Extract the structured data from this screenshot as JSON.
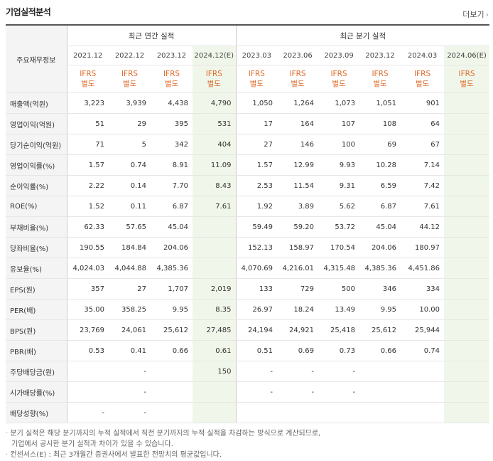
{
  "title": "기업실적분석",
  "more_label": "더보기",
  "more_arrow": "›",
  "header": {
    "row_label": "주요재무정보",
    "annual_group": "최근 연간 실적",
    "quarter_group": "최근 분기 실적",
    "annual_periods": [
      "2021.12",
      "2022.12",
      "2023.12",
      "2024.12(E)"
    ],
    "quarter_periods": [
      "2023.03",
      "2023.06",
      "2023.09",
      "2023.12",
      "2024.03",
      "2024.06(E)"
    ],
    "ifrs_line1": "IFRS",
    "ifrs_line2": "별도"
  },
  "rows": [
    {
      "label": "매출액(억원)",
      "values": [
        "3,223",
        "3,939",
        "4,438",
        "4,790",
        "1,050",
        "1,264",
        "1,073",
        "1,051",
        "901",
        ""
      ]
    },
    {
      "label": "영업이익(억원)",
      "values": [
        "51",
        "29",
        "395",
        "531",
        "17",
        "164",
        "107",
        "108",
        "64",
        ""
      ]
    },
    {
      "label": "당기순이익(억원)",
      "values": [
        "71",
        "5",
        "342",
        "404",
        "27",
        "146",
        "100",
        "69",
        "67",
        ""
      ]
    },
    {
      "label": "영업이익률(%)",
      "values": [
        "1.57",
        "0.74",
        "8.91",
        "11.09",
        "1.57",
        "12.99",
        "9.93",
        "10.28",
        "7.14",
        ""
      ]
    },
    {
      "label": "순이익률(%)",
      "values": [
        "2.22",
        "0.14",
        "7.70",
        "8.43",
        "2.53",
        "11.54",
        "9.31",
        "6.59",
        "7.42",
        ""
      ]
    },
    {
      "label": "ROE(%)",
      "values": [
        "1.52",
        "0.11",
        "6.87",
        "7.61",
        "1.92",
        "3.89",
        "5.62",
        "6.87",
        "7.61",
        ""
      ]
    },
    {
      "label": "부채비율(%)",
      "values": [
        "62.33",
        "57.65",
        "45.04",
        "",
        "59.49",
        "59.20",
        "53.72",
        "45.04",
        "44.12",
        ""
      ]
    },
    {
      "label": "당좌비율(%)",
      "values": [
        "190.55",
        "184.84",
        "204.06",
        "",
        "152.13",
        "158.97",
        "170.54",
        "204.06",
        "180.97",
        ""
      ]
    },
    {
      "label": "유보율(%)",
      "values": [
        "4,024.03",
        "4,044.88",
        "4,385.36",
        "",
        "4,070.69",
        "4,216.01",
        "4,315.48",
        "4,385.36",
        "4,451.86",
        ""
      ]
    },
    {
      "label": "EPS(원)",
      "values": [
        "357",
        "27",
        "1,707",
        "2,019",
        "133",
        "729",
        "500",
        "346",
        "334",
        ""
      ]
    },
    {
      "label": "PER(배)",
      "values": [
        "35.00",
        "358.25",
        "9.95",
        "8.35",
        "26.97",
        "18.24",
        "13.49",
        "9.95",
        "10.00",
        ""
      ]
    },
    {
      "label": "BPS(원)",
      "values": [
        "23,769",
        "24,061",
        "25,612",
        "27,485",
        "24,194",
        "24,921",
        "25,418",
        "25,612",
        "25,944",
        ""
      ]
    },
    {
      "label": "PBR(배)",
      "values": [
        "0.53",
        "0.41",
        "0.66",
        "0.61",
        "0.51",
        "0.69",
        "0.73",
        "0.66",
        "0.74",
        ""
      ]
    },
    {
      "label": "주당배당금(원)",
      "values": [
        "",
        "-",
        "",
        "150",
        "-",
        "-",
        "-",
        "",
        "",
        ""
      ]
    },
    {
      "label": "시가배당률(%)",
      "values": [
        "",
        "-",
        "",
        "",
        "-",
        "-",
        "-",
        "",
        "",
        ""
      ]
    },
    {
      "label": "배당성향(%)",
      "values": [
        "-",
        "-",
        "",
        "",
        "",
        "",
        "",
        "",
        "",
        ""
      ]
    }
  ],
  "notes": [
    "분기 실적은 해당 분기까지의 누적 실적에서 직전 분기까지의 누적 실적을 차감하는 방식으로 계산되므로,",
    "기업에서 공시한 분기 실적과 차이가 있을 수 있습니다.",
    "컨센서스(E) : 최근 3개월간 증권사에서 발표한 전망치의 평균값입니다."
  ],
  "colors": {
    "ifrs": "#e06b2b",
    "estimate_bg": "#f0f7ea",
    "label_bg": "#f4f4f4"
  }
}
